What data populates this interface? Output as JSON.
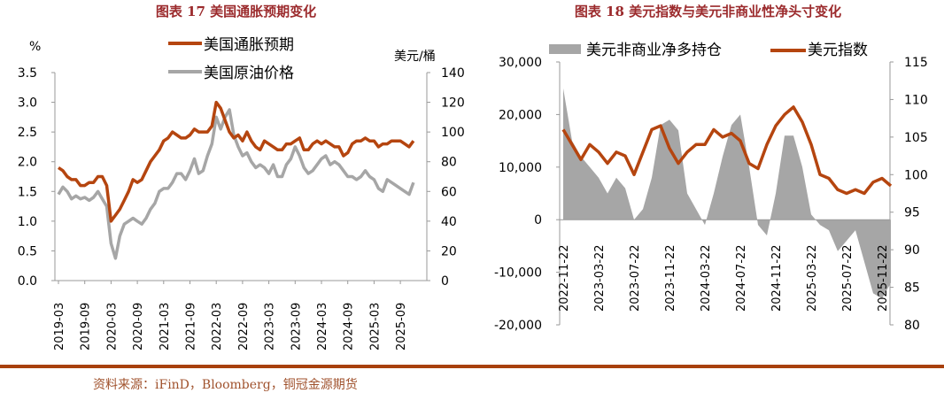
{
  "chart_data": [
    {
      "type": "line",
      "title": "图表 17  美国通胀预期变化",
      "left_unit": "%",
      "right_unit": "美元/桶",
      "x_start": "2019-03",
      "x_frequency": "monthly",
      "x_tick_labels": [
        "2019-03",
        "2019-09",
        "2020-03",
        "2020-09",
        "2021-03",
        "2021-09",
        "2022-03",
        "2022-09",
        "2023-03",
        "2023-09",
        "2024-03",
        "2024-09",
        "2025-03",
        "2025-09"
      ],
      "left_ticks": [
        "0.0",
        "0.5",
        "1.0",
        "1.5",
        "2.0",
        "2.5",
        "3.0",
        "3.5"
      ],
      "right_ticks": [
        "0",
        "20",
        "40",
        "60",
        "80",
        "100",
        "120",
        "140"
      ],
      "ylim_left": [
        0,
        3.5
      ],
      "ylim_right": [
        0,
        140
      ],
      "legend_position": "top-center",
      "series": [
        {
          "name": "美国通胀预期",
          "axis": "left",
          "color": "#b5450f",
          "values": [
            1.9,
            1.85,
            1.75,
            1.7,
            1.7,
            1.6,
            1.6,
            1.65,
            1.65,
            1.75,
            1.75,
            1.6,
            1.0,
            1.1,
            1.2,
            1.35,
            1.5,
            1.7,
            1.65,
            1.7,
            1.85,
            2.0,
            2.1,
            2.2,
            2.35,
            2.4,
            2.5,
            2.45,
            2.4,
            2.4,
            2.45,
            2.55,
            2.5,
            2.5,
            2.5,
            2.6,
            3.0,
            2.9,
            2.7,
            2.5,
            2.4,
            2.45,
            2.35,
            2.5,
            2.35,
            2.25,
            2.2,
            2.35,
            2.3,
            2.25,
            2.2,
            2.2,
            2.3,
            2.3,
            2.35,
            2.4,
            2.2,
            2.2,
            2.3,
            2.35,
            2.3,
            2.35,
            2.3,
            2.25,
            2.25,
            2.1,
            2.15,
            2.3,
            2.35,
            2.35,
            2.4,
            2.35,
            2.35,
            2.25,
            2.3,
            2.3,
            2.35,
            2.35,
            2.35,
            2.3,
            2.25,
            2.35
          ]
        },
        {
          "name": "美国原油价格",
          "axis": "right",
          "color": "#a6a6a6",
          "values": [
            58,
            63,
            60,
            55,
            57,
            55,
            56,
            54,
            56,
            60,
            55,
            50,
            25,
            15,
            30,
            38,
            40,
            42,
            40,
            38,
            42,
            48,
            52,
            60,
            62,
            62,
            66,
            72,
            72,
            68,
            74,
            82,
            72,
            74,
            84,
            92,
            110,
            102,
            110,
            115,
            98,
            90,
            84,
            86,
            80,
            76,
            78,
            76,
            72,
            78,
            70,
            70,
            78,
            82,
            90,
            84,
            76,
            72,
            74,
            78,
            82,
            84,
            78,
            80,
            78,
            74,
            70,
            70,
            68,
            70,
            74,
            70,
            68,
            62,
            60,
            68,
            66,
            64,
            62,
            60,
            58,
            66
          ]
        }
      ]
    },
    {
      "type": "line",
      "title": "图表 18  美元指数与美元非商业性净头寸变化",
      "x_start": "2022-11",
      "x_frequency": "monthly",
      "x_tick_labels": [
        "2022-11-22",
        "2023-03-22",
        "2023-07-22",
        "2023-11-22",
        "2024-03-22",
        "2024-07-22",
        "2024-11-22",
        "2025-03-22",
        "2025-07-22",
        "2025-11-22"
      ],
      "left_ticks": [
        "-20,000",
        "-10,000",
        "0",
        "10,000",
        "20,000",
        "30,000"
      ],
      "right_ticks": [
        "80",
        "85",
        "90",
        "95",
        "100",
        "105",
        "110",
        "115"
      ],
      "ylim_left": [
        -20000,
        30000
      ],
      "ylim_right": [
        80,
        115
      ],
      "legend_position": "top",
      "series": [
        {
          "name": "美元非商业净多持仓",
          "axis": "left",
          "kind": "area",
          "color": "#a6a6a6",
          "values": [
            25000,
            15000,
            12000,
            10000,
            8000,
            5000,
            8000,
            6000,
            0,
            2000,
            8000,
            18000,
            19000,
            17000,
            5000,
            2000,
            -1000,
            5000,
            12000,
            18000,
            20000,
            10000,
            -1000,
            -3000,
            5000,
            16000,
            16000,
            10000,
            1000,
            -1000,
            -2000,
            -6000,
            -4000,
            -2000,
            -8000,
            -14000,
            -15000,
            -12000
          ]
        },
        {
          "name": "美元指数",
          "axis": "right",
          "kind": "line",
          "color": "#b5450f",
          "values": [
            106,
            104,
            102,
            104,
            103,
            101.5,
            103,
            102.5,
            100,
            103,
            106,
            106.5,
            103.5,
            101.5,
            103,
            104,
            104,
            106,
            105,
            105.5,
            104.5,
            101.5,
            100.8,
            104,
            106.5,
            108,
            109,
            107,
            104,
            100,
            99.5,
            98,
            97.5,
            98,
            97.5,
            99,
            99.5,
            98.5
          ]
        }
      ]
    }
  ],
  "source": "资料来源：iFinD，Bloomberg，铜冠金源期货"
}
